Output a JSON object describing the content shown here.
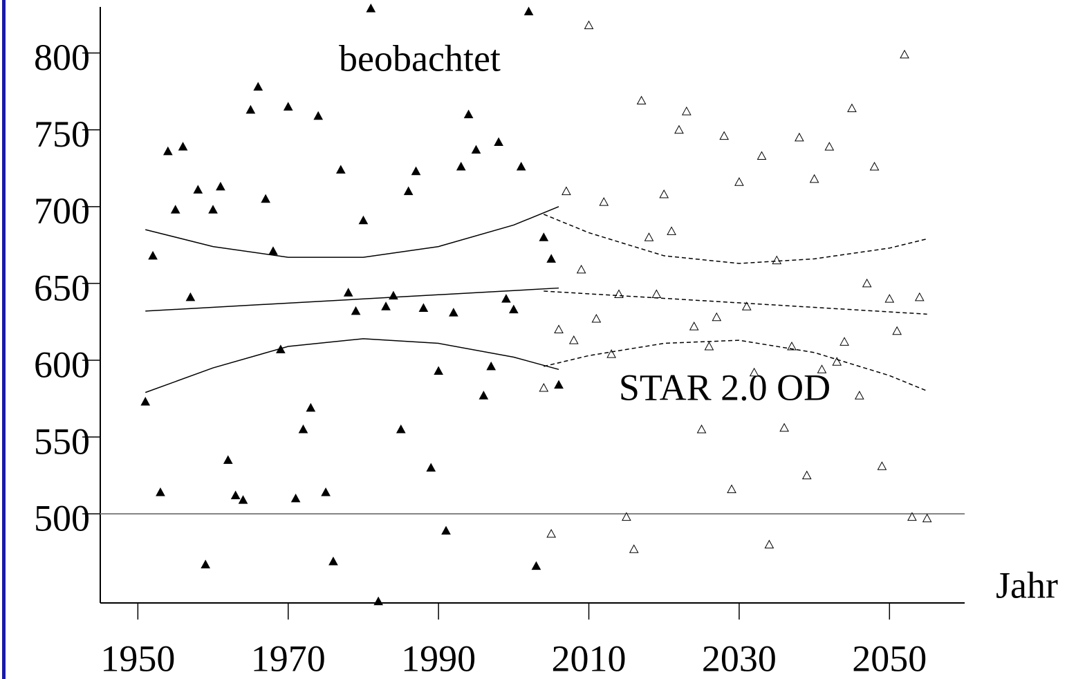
{
  "chart_data": {
    "type": "scatter",
    "annotations": [
      "beobachtet",
      "STAR 2.0 OD"
    ],
    "x_label": "Jahr",
    "xlim": [
      1945,
      2060
    ],
    "xticks": [
      1950,
      1970,
      1990,
      2010,
      2030,
      2050
    ],
    "ylim": [
      442,
      830
    ],
    "yticks": [
      500,
      550,
      600,
      650,
      700,
      750,
      800
    ],
    "hline": 500,
    "series": [
      {
        "kind": "marker",
        "marker": "filled-triangle",
        "color": "#000000",
        "x": [
          1951,
          1952,
          1953,
          1954,
          1955,
          1956,
          1957,
          1958,
          1959,
          1960,
          1961,
          1962,
          1963,
          1964,
          1965,
          1966,
          1967,
          1968,
          1969,
          1970,
          1971,
          1972,
          1973,
          1974,
          1975,
          1976,
          1977,
          1978,
          1979,
          1980,
          1981,
          1982,
          1983,
          1984,
          1985,
          1986,
          1987,
          1988,
          1989,
          1990,
          1991,
          1992,
          1993,
          1994,
          1995,
          1996,
          1997,
          1998,
          1999,
          2000,
          2001,
          2002,
          2003,
          2004,
          2005,
          2006
        ],
        "values": [
          573,
          668,
          514,
          736,
          698,
          739,
          641,
          711,
          467,
          698,
          713,
          535,
          512,
          509,
          763,
          778,
          705,
          671,
          607,
          765,
          510,
          555,
          569,
          759,
          514,
          469,
          724,
          644,
          632,
          691,
          829,
          443,
          635,
          642,
          555,
          710,
          723,
          634,
          530,
          593,
          489,
          631,
          726,
          760,
          737,
          577,
          596,
          742,
          640,
          633,
          726,
          827,
          466,
          680,
          666,
          584
        ]
      },
      {
        "kind": "marker",
        "marker": "open-triangle",
        "color": "#000000",
        "x": [
          2004,
          2005,
          2006,
          2007,
          2008,
          2009,
          2010,
          2011,
          2012,
          2013,
          2014,
          2015,
          2016,
          2017,
          2018,
          2019,
          2020,
          2021,
          2022,
          2023,
          2024,
          2025,
          2026,
          2027,
          2028,
          2029,
          2030,
          2031,
          2032,
          2033,
          2034,
          2035,
          2036,
          2037,
          2038,
          2039,
          2040,
          2041,
          2042,
          2043,
          2044,
          2045,
          2046,
          2047,
          2048,
          2049,
          2050,
          2051,
          2052,
          2053,
          2054,
          2055
        ],
        "values": [
          582,
          487,
          620,
          710,
          613,
          659,
          818,
          627,
          703,
          604,
          643,
          498,
          477,
          769,
          680,
          643,
          708,
          684,
          750,
          762,
          622,
          555,
          609,
          628,
          746,
          516,
          716,
          635,
          592,
          733,
          480,
          665,
          556,
          609,
          745,
          525,
          718,
          594,
          739,
          599,
          612,
          764,
          577,
          650,
          726,
          531,
          640,
          619,
          799,
          498,
          641,
          497
        ]
      },
      {
        "kind": "line",
        "dash": "none",
        "color": "#000000",
        "x": [
          1951,
          2006
        ],
        "values": [
          632,
          647
        ]
      },
      {
        "kind": "line",
        "dash": "none",
        "color": "#000000",
        "x": [
          1951,
          1960,
          1970,
          1980,
          1990,
          2000,
          2006
        ],
        "values": [
          685,
          674,
          667,
          667,
          674,
          688,
          700
        ]
      },
      {
        "kind": "line",
        "dash": "none",
        "color": "#000000",
        "x": [
          1951,
          1960,
          1970,
          1980,
          1990,
          2000,
          2006
        ],
        "values": [
          579,
          595,
          609,
          614,
          611,
          602,
          594
        ]
      },
      {
        "kind": "line",
        "dash": "6,4",
        "color": "#000000",
        "x": [
          2004,
          2055
        ],
        "values": [
          645,
          630
        ]
      },
      {
        "kind": "line",
        "dash": "6,4",
        "color": "#000000",
        "x": [
          2004,
          2010,
          2020,
          2030,
          2040,
          2050,
          2055
        ],
        "values": [
          695,
          683,
          668,
          663,
          666,
          673,
          679
        ]
      },
      {
        "kind": "line",
        "dash": "6,4",
        "color": "#000000",
        "x": [
          2004,
          2010,
          2020,
          2030,
          2040,
          2050,
          2055
        ],
        "values": [
          596,
          603,
          611,
          613,
          605,
          590,
          580
        ]
      }
    ]
  }
}
